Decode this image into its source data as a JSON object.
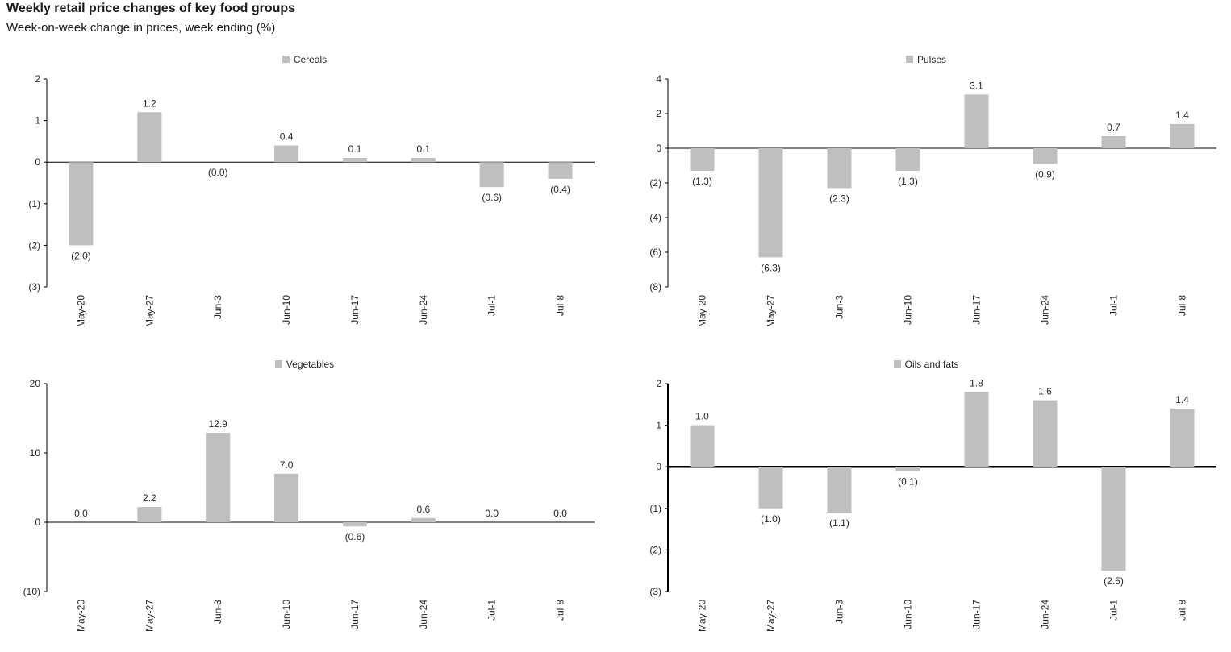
{
  "header": {
    "title": "Weekly retail price changes of key food groups",
    "subtitle": "Week-on-week change in prices, week ending (%)"
  },
  "style": {
    "bar_color": "#bfbfbf",
    "axis_color": "#000000",
    "label_color": "#262626"
  },
  "chart_data": [
    {
      "type": "bar",
      "name": "cereals",
      "legend_label": "Cereals",
      "categories": [
        "May-20",
        "May-27",
        "Jun-3",
        "Jun-10",
        "Jun-17",
        "Jun-24",
        "Jul-1",
        "Jul-8"
      ],
      "values": [
        -2.0,
        1.2,
        0.0,
        0.4,
        0.1,
        0.1,
        -0.6,
        -0.4
      ],
      "labels": [
        "(2.0)",
        "1.2",
        "(0.0)",
        "0.4",
        "0.1",
        "0.1",
        "(0.6)",
        "(0.4)"
      ],
      "ylim": [
        -3,
        2
      ],
      "yticks": [
        2,
        1,
        0,
        -1,
        -2,
        -3
      ],
      "ytick_labels": [
        "2",
        "1",
        "0",
        "(1)",
        "(2)",
        "(3)"
      ],
      "zero_line_width": 1,
      "axis_width": 1,
      "grid": false,
      "legend_position": "top"
    },
    {
      "type": "bar",
      "name": "pulses",
      "legend_label": "Pulses",
      "categories": [
        "May-20",
        "May-27",
        "Jun-3",
        "Jun-10",
        "Jun-17",
        "Jun-24",
        "Jul-1",
        "Jul-8"
      ],
      "values": [
        -1.3,
        -6.3,
        -2.3,
        -1.3,
        3.1,
        -0.9,
        0.7,
        1.4
      ],
      "labels": [
        "(1.3)",
        "(6.3)",
        "(2.3)",
        "(1.3)",
        "3.1",
        "(0.9)",
        "0.7",
        "1.4"
      ],
      "ylim": [
        -8,
        4
      ],
      "yticks": [
        4,
        2,
        0,
        -2,
        -4,
        -6,
        -8
      ],
      "ytick_labels": [
        "4",
        "2",
        "0",
        "(2)",
        "(4)",
        "(6)",
        "(8)"
      ],
      "zero_line_width": 1,
      "axis_width": 1,
      "grid": false,
      "legend_position": "top"
    },
    {
      "type": "bar",
      "name": "vegetables",
      "legend_label": "Vegetables",
      "categories": [
        "May-20",
        "May-27",
        "Jun-3",
        "Jun-10",
        "Jun-17",
        "Jun-24",
        "Jul-1",
        "Jul-8"
      ],
      "values": [
        0.0,
        2.2,
        12.9,
        7.0,
        -0.6,
        0.6,
        0.0,
        0.0
      ],
      "labels": [
        "0.0",
        "2.2",
        "12.9",
        "7.0",
        "(0.6)",
        "0.6",
        "0.0",
        "0.0"
      ],
      "ylim": [
        -10,
        20
      ],
      "yticks": [
        20,
        10,
        0,
        -10
      ],
      "ytick_labels": [
        "20",
        "10",
        "0",
        "(10)"
      ],
      "zero_line_width": 1,
      "axis_width": 1,
      "grid": false,
      "legend_position": "top"
    },
    {
      "type": "bar",
      "name": "oils-and-fats",
      "legend_label": "Oils and fats",
      "categories": [
        "May-20",
        "May-27",
        "Jun-3",
        "Jun-10",
        "Jun-17",
        "Jun-24",
        "Jul-1",
        "Jul-8"
      ],
      "values": [
        1.0,
        -1.0,
        -1.1,
        -0.1,
        1.8,
        1.6,
        -2.5,
        1.4
      ],
      "labels": [
        "1.0",
        "(1.0)",
        "(1.1)",
        "(0.1)",
        "1.8",
        "1.6",
        "(2.5)",
        "1.4"
      ],
      "ylim": [
        -3,
        2
      ],
      "yticks": [
        2,
        1,
        0,
        -1,
        -2,
        -3
      ],
      "ytick_labels": [
        "2",
        "1",
        "0",
        "(1)",
        "(2)",
        "(3)"
      ],
      "zero_line_width": 2.5,
      "axis_width": 2,
      "grid": false,
      "legend_position": "top"
    }
  ]
}
